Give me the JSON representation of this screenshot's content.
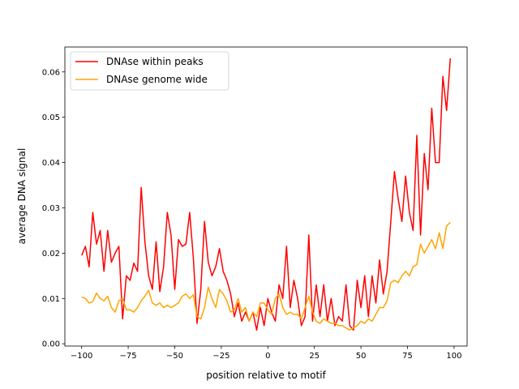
{
  "chart_data": {
    "type": "line",
    "title": "",
    "xlabel": "position relative to motif",
    "ylabel": "average DNA signal",
    "xlim": [
      -109,
      107
    ],
    "ylim": [
      -0.0005,
      0.0655
    ],
    "xticks": [
      -100,
      -75,
      -50,
      -25,
      0,
      25,
      50,
      75,
      100
    ],
    "xtick_labels": [
      "−100",
      "−75",
      "−50",
      "−25",
      "0",
      "25",
      "50",
      "75",
      "100"
    ],
    "yticks": [
      0,
      0.01,
      0.02,
      0.03,
      0.04,
      0.05,
      0.06
    ],
    "ytick_labels": [
      "0.00",
      "0.01",
      "0.02",
      "0.03",
      "0.04",
      "0.05",
      "0.06"
    ],
    "grid": false,
    "legend_position": "top-left",
    "x": [
      -100,
      -98,
      -96,
      -94,
      -92,
      -90,
      -88,
      -86,
      -84,
      -82,
      -80,
      -78,
      -76,
      -74,
      -72,
      -70,
      -68,
      -66,
      -64,
      -62,
      -60,
      -58,
      -56,
      -54,
      -52,
      -50,
      -48,
      -46,
      -44,
      -42,
      -40,
      -38,
      -36,
      -34,
      -32,
      -30,
      -28,
      -26,
      -24,
      -22,
      -20,
      -18,
      -16,
      -14,
      -12,
      -10,
      -8,
      -6,
      -4,
      -2,
      0,
      2,
      4,
      6,
      8,
      10,
      12,
      14,
      16,
      18,
      20,
      22,
      24,
      26,
      28,
      30,
      32,
      34,
      36,
      38,
      40,
      42,
      44,
      46,
      48,
      50,
      52,
      54,
      56,
      58,
      60,
      62,
      64,
      66,
      68,
      70,
      72,
      74,
      76,
      78,
      80,
      82,
      84,
      86,
      88,
      90,
      92,
      94,
      96,
      98
    ],
    "series": [
      {
        "name": "DNAse within peaks",
        "color": "#ff0000",
        "values": [
          0.0195,
          0.0215,
          0.017,
          0.029,
          0.022,
          0.025,
          0.016,
          0.025,
          0.018,
          0.02,
          0.0215,
          0.0055,
          0.015,
          0.014,
          0.0178,
          0.016,
          0.0345,
          0.0225,
          0.015,
          0.012,
          0.0225,
          0.0115,
          0.017,
          0.029,
          0.024,
          0.012,
          0.023,
          0.0215,
          0.022,
          0.029,
          0.019,
          0.0045,
          0.012,
          0.027,
          0.018,
          0.015,
          0.017,
          0.021,
          0.016,
          0.014,
          0.011,
          0.006,
          0.009,
          0.005,
          0.007,
          0.005,
          0.007,
          0.003,
          0.008,
          0.004,
          0.01,
          0.007,
          0.005,
          0.013,
          0.01,
          0.0215,
          0.008,
          0.014,
          0.01,
          0.004,
          0.006,
          0.024,
          0.005,
          0.013,
          0.006,
          0.013,
          0.005,
          0.01,
          0.004,
          0.006,
          0.005,
          0.013,
          0.004,
          0.003,
          0.014,
          0.008,
          0.015,
          0.006,
          0.015,
          0.009,
          0.0185,
          0.011,
          0.016,
          0.027,
          0.038,
          0.032,
          0.027,
          0.037,
          0.029,
          0.025,
          0.046,
          0.024,
          0.042,
          0.034,
          0.052,
          0.04,
          0.04,
          0.059,
          0.0515,
          0.063
        ]
      },
      {
        "name": "DNAse genome wide",
        "color": "#ffa500",
        "values": [
          0.0103,
          0.01,
          0.009,
          0.0093,
          0.0112,
          0.01,
          0.0095,
          0.0105,
          0.008,
          0.007,
          0.0095,
          0.01,
          0.0075,
          0.0075,
          0.007,
          0.008,
          0.0095,
          0.0105,
          0.0118,
          0.009,
          0.0085,
          0.009,
          0.008,
          0.0085,
          0.008,
          0.0085,
          0.009,
          0.0105,
          0.011,
          0.01,
          0.0108,
          0.006,
          0.0055,
          0.008,
          0.0125,
          0.01,
          0.008,
          0.012,
          0.011,
          0.0095,
          0.007,
          0.0075,
          0.01,
          0.007,
          0.008,
          0.005,
          0.007,
          0.006,
          0.009,
          0.009,
          0.0075,
          0.0065,
          0.01,
          0.011,
          0.008,
          0.0065,
          0.007,
          0.0065,
          0.0065,
          0.0055,
          0.008,
          0.0105,
          0.007,
          0.005,
          0.0045,
          0.0055,
          0.005,
          0.0045,
          0.0045,
          0.004,
          0.004,
          0.0035,
          0.003,
          0.0035,
          0.004,
          0.005,
          0.0045,
          0.0055,
          0.005,
          0.0065,
          0.008,
          0.008,
          0.0095,
          0.0135,
          0.014,
          0.0135,
          0.015,
          0.016,
          0.015,
          0.017,
          0.0175,
          0.022,
          0.02,
          0.0215,
          0.023,
          0.021,
          0.0245,
          0.021,
          0.026,
          0.0268
        ]
      }
    ]
  }
}
